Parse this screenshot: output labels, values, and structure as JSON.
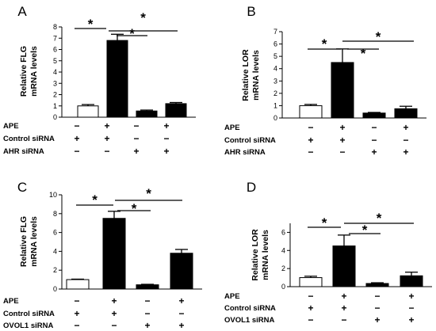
{
  "chart_data": [
    {
      "type": "bar",
      "panel": "A",
      "ylabel": [
        "Relative FLG",
        "mRNA levels"
      ],
      "yticks": [
        0,
        1,
        2,
        3,
        4,
        5,
        6,
        7,
        8
      ],
      "ylim": [
        0,
        8
      ],
      "categories": [
        "1",
        "2",
        "3",
        "4"
      ],
      "values": [
        1.0,
        6.8,
        0.55,
        1.2
      ],
      "errors": [
        0.12,
        0.55,
        0.08,
        0.1
      ],
      "fills": [
        "white",
        "black",
        "black",
        "black"
      ],
      "conditions": [
        {
          "name": "APE",
          "signs": [
            "−",
            "+",
            "−",
            "+"
          ]
        },
        {
          "name": "Control siRNA",
          "signs": [
            "+",
            "+",
            "−",
            "−"
          ]
        },
        {
          "name": "AHR siRNA",
          "signs": [
            "−",
            "−",
            "+",
            "+"
          ]
        }
      ],
      "significance": [
        "*",
        "*",
        "*"
      ]
    },
    {
      "type": "bar",
      "panel": "B",
      "ylabel": [
        "Relative LOR",
        "mRNA levels"
      ],
      "yticks": [
        0,
        1,
        2,
        3,
        4,
        5,
        6,
        7
      ],
      "ylim": [
        0,
        7
      ],
      "categories": [
        "1",
        "2",
        "3",
        "4"
      ],
      "values": [
        1.0,
        4.5,
        0.4,
        0.75
      ],
      "errors": [
        0.1,
        1.1,
        0.05,
        0.2
      ],
      "fills": [
        "white",
        "black",
        "black",
        "black"
      ],
      "conditions": [
        {
          "name": "APE",
          "signs": [
            "−",
            "+",
            "−",
            "+"
          ]
        },
        {
          "name": "Control siRNA",
          "signs": [
            "+",
            "+",
            "−",
            "−"
          ]
        },
        {
          "name": "AHR siRNA",
          "signs": [
            "−",
            "−",
            "+",
            "+"
          ]
        }
      ],
      "significance": [
        "*",
        "*",
        "*"
      ]
    },
    {
      "type": "bar",
      "panel": "C",
      "ylabel": [
        "Relative FLG",
        "mRNA levels"
      ],
      "yticks": [
        0,
        2,
        4,
        6,
        8,
        10
      ],
      "ylim": [
        0,
        10
      ],
      "categories": [
        "1",
        "2",
        "3",
        "4"
      ],
      "values": [
        1.0,
        7.5,
        0.45,
        3.8
      ],
      "errors": [
        0.05,
        0.75,
        0.05,
        0.4
      ],
      "fills": [
        "white",
        "black",
        "black",
        "black"
      ],
      "conditions": [
        {
          "name": "APE",
          "signs": [
            "−",
            "+",
            "−",
            "+"
          ]
        },
        {
          "name": "Control siRNA",
          "signs": [
            "+",
            "+",
            "−",
            "−"
          ]
        },
        {
          "name": "OVOL1 siRNA",
          "signs": [
            "−",
            "−",
            "+",
            "+"
          ]
        }
      ],
      "significance": [
        "*",
        "*",
        "*"
      ]
    },
    {
      "type": "bar",
      "panel": "D",
      "ylabel": [
        "Relative LOR",
        "mRNA levels"
      ],
      "yticks": [
        0,
        2,
        4,
        6
      ],
      "ylim": [
        0,
        7
      ],
      "categories": [
        "1",
        "2",
        "3",
        "4"
      ],
      "values": [
        1.0,
        4.5,
        0.35,
        1.2
      ],
      "errors": [
        0.15,
        1.2,
        0.08,
        0.4
      ],
      "fills": [
        "white",
        "black",
        "black",
        "black"
      ],
      "conditions": [
        {
          "name": "APE",
          "signs": [
            "−",
            "+",
            "−",
            "+"
          ]
        },
        {
          "name": "Control siRNA",
          "signs": [
            "+",
            "+",
            "−",
            "−"
          ]
        },
        {
          "name": "OVOL1 siRNA",
          "signs": [
            "−",
            "−",
            "+",
            "+"
          ]
        }
      ],
      "significance": [
        "*",
        "*",
        "*"
      ]
    }
  ]
}
